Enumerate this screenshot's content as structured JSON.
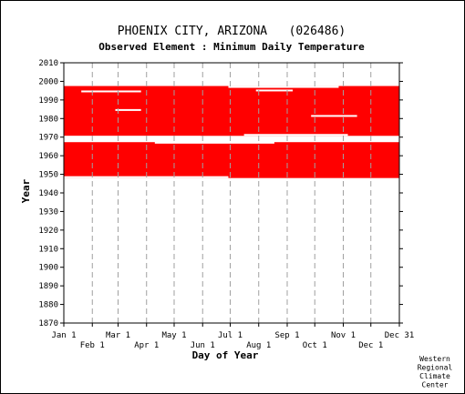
{
  "chart_data": {
    "type": "timeline",
    "title": "PHOENIX CITY, ARIZONA   (026486)",
    "subtitle": "Observed Element : Minimum Daily Temperature",
    "xlabel": "Day of Year",
    "ylabel": "Year",
    "credit": [
      "Western",
      "Regional",
      "Climate",
      "Center"
    ],
    "x_range": [
      1,
      366
    ],
    "y_range": [
      1870,
      2010
    ],
    "y_ticks": [
      1870,
      1880,
      1890,
      1900,
      1910,
      1920,
      1930,
      1940,
      1950,
      1960,
      1970,
      1980,
      1990,
      2000,
      2010
    ],
    "month_ticks": [
      {
        "label": "Jan 1",
        "day": 1
      },
      {
        "label": "Feb 1",
        "day": 32
      },
      {
        "label": "Mar 1",
        "day": 60
      },
      {
        "label": "Apr 1",
        "day": 91
      },
      {
        "label": "May 1",
        "day": 121
      },
      {
        "label": "Jun 1",
        "day": 152
      },
      {
        "label": "Jul 1",
        "day": 182
      },
      {
        "label": "Aug 1",
        "day": 213
      },
      {
        "label": "Sep 1",
        "day": 244
      },
      {
        "label": "Oct 1",
        "day": 274
      },
      {
        "label": "Nov 1",
        "day": 305
      },
      {
        "label": "Dec 1",
        "day": 335
      },
      {
        "label": "Dec 31",
        "day": 366
      }
    ],
    "data_color": "#ff0000",
    "observed_periods": [
      {
        "start_day": 1,
        "start_year": 1948.0,
        "end_day": 366,
        "end_year": 1967.3
      },
      {
        "start_day": 1,
        "start_year": 1970.7,
        "end_day": 366,
        "end_year": 1997.5
      }
    ],
    "gaps": [
      {
        "day_start": 20,
        "day_end": 85,
        "year": 1994.6
      },
      {
        "day_start": 180,
        "day_end": 300,
        "year": 1997.0
      },
      {
        "day_start": 210,
        "day_end": 250,
        "year": 1995.1
      },
      {
        "day_start": 57,
        "day_end": 85,
        "year": 1984.6
      },
      {
        "day_start": 270,
        "day_end": 320,
        "year": 1981.4
      },
      {
        "day_start": 197,
        "day_end": 310,
        "year": 1971.2
      },
      {
        "day_start": 1,
        "day_end": 150,
        "year": 1970.2
      },
      {
        "day_start": 100,
        "day_end": 230,
        "year": 1967.0
      },
      {
        "day_start": 1,
        "day_end": 180,
        "year": 1948.5
      }
    ]
  }
}
